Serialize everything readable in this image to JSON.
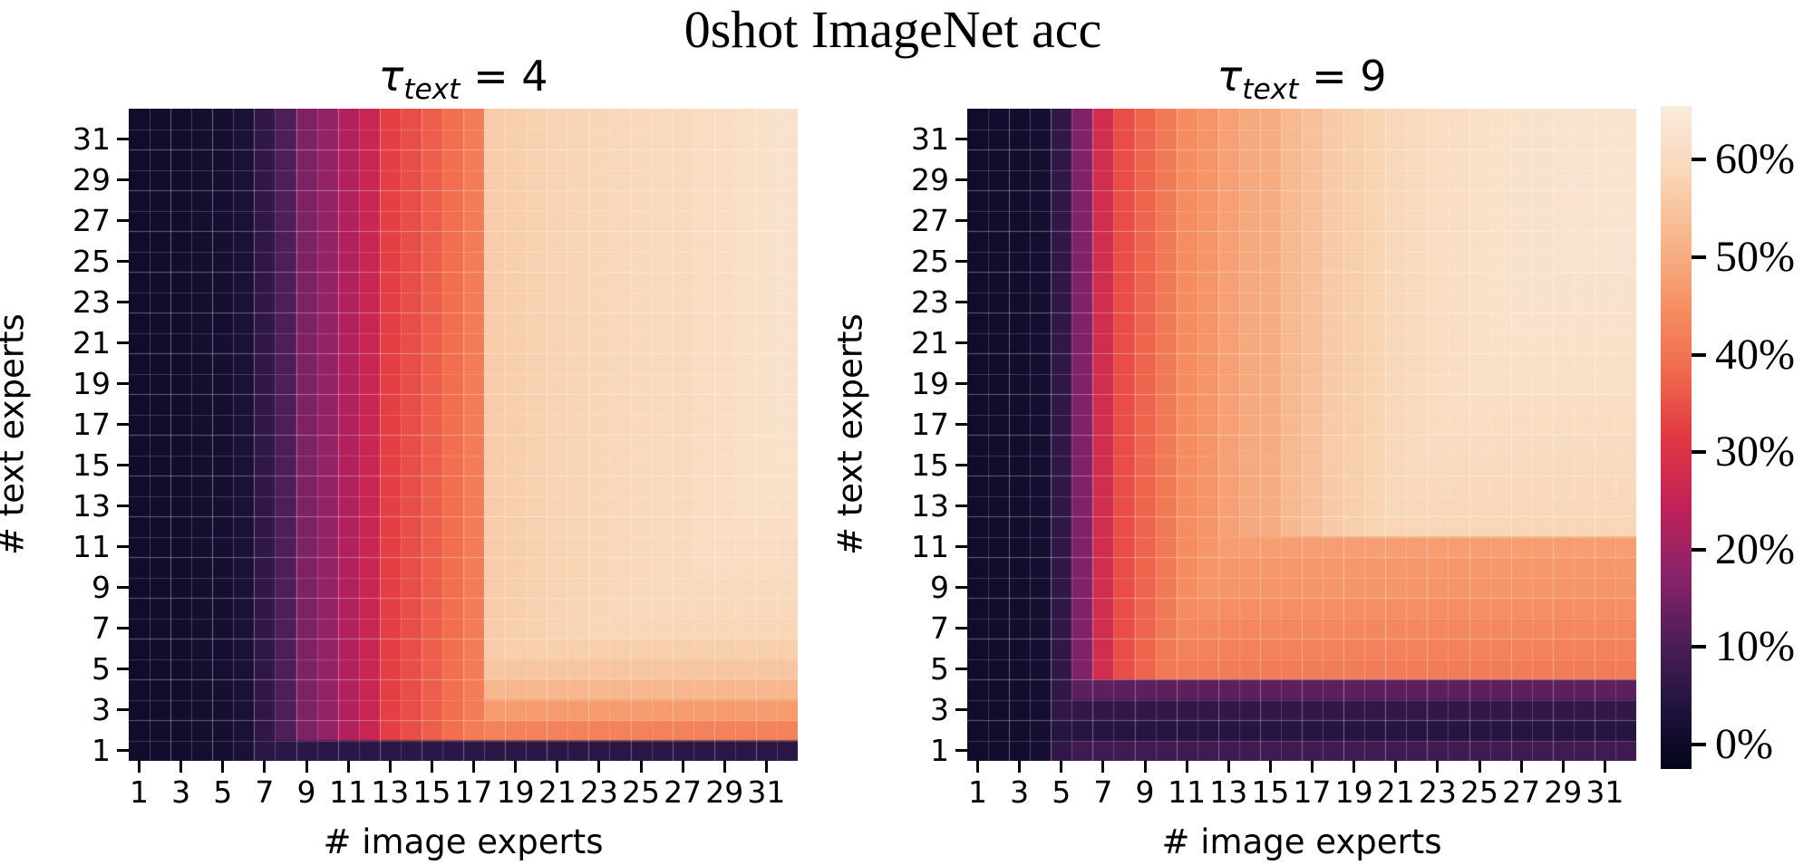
{
  "figure": {
    "title": "0shot ImageNet acc",
    "background": "#ffffff"
  },
  "chart_data": [
    {
      "type": "heatmap",
      "panel": "left",
      "title": "τ_text = 4",
      "title_display": {
        "tau": "τ",
        "sub": "text",
        "rest": " = 4"
      },
      "xlabel": "# image experts",
      "ylabel": "# text experts",
      "x_range": [
        1,
        32
      ],
      "y_range": [
        1,
        32
      ],
      "x_ticks": [
        1,
        3,
        5,
        7,
        9,
        11,
        13,
        15,
        17,
        19,
        21,
        23,
        25,
        27,
        29,
        31
      ],
      "y_ticks": [
        1,
        3,
        5,
        7,
        9,
        11,
        13,
        15,
        17,
        19,
        21,
        23,
        25,
        27,
        29,
        31
      ],
      "values_unit": "percent accuracy",
      "values_model": "acc(x_image_experts, y_text_experts) = min(col_profile[x-1], row_profile[y-1])",
      "col_profile": [
        0.5,
        0.7,
        0.9,
        1.2,
        1.8,
        2.5,
        6,
        10.5,
        16,
        18.5,
        22.5,
        26,
        32.5,
        34.5,
        36.5,
        39,
        41.5,
        56.5,
        57,
        57.5,
        58,
        58.3,
        58.6,
        59,
        59.3,
        59.6,
        60,
        60.4,
        60.8,
        61.3,
        61.8,
        62.5
      ],
      "row_profile": [
        5.5,
        42.5,
        47,
        52,
        55,
        57,
        58.5,
        59.5,
        60,
        60.4,
        60.8,
        61.1,
        61.4,
        61.7,
        62,
        62.2,
        62.4,
        62.6,
        62.8,
        63,
        63.2,
        63.4,
        63.6,
        63.8,
        64,
        64.1,
        64.2,
        64.3,
        64.4,
        64.5,
        64.6,
        64.7
      ]
    },
    {
      "type": "heatmap",
      "panel": "right",
      "title": "τ_text = 9",
      "title_display": {
        "tau": "τ",
        "sub": "text",
        "rest": " = 9"
      },
      "xlabel": "# image experts",
      "ylabel": "# text experts",
      "x_range": [
        1,
        32
      ],
      "y_range": [
        1,
        32
      ],
      "x_ticks": [
        1,
        3,
        5,
        7,
        9,
        11,
        13,
        15,
        17,
        19,
        21,
        23,
        25,
        27,
        29,
        31
      ],
      "y_ticks": [
        1,
        3,
        5,
        7,
        9,
        11,
        13,
        15,
        17,
        19,
        21,
        23,
        25,
        27,
        29,
        31
      ],
      "values_unit": "percent accuracy",
      "values_model": "acc(x_image_experts, y_text_experts) = min(col_profile[x-1], row_profile[y-1])",
      "col_profile": [
        0.5,
        0.7,
        0.9,
        1.5,
        6.5,
        16.5,
        28,
        34.5,
        37.5,
        41,
        44.5,
        46,
        48,
        49.5,
        50,
        52.5,
        54,
        56,
        57,
        58,
        59,
        60,
        60.5,
        61,
        61.5,
        62,
        62.3,
        62.5,
        62.7,
        62.8,
        63,
        63.2
      ],
      "row_profile": [
        8.5,
        4.5,
        6.5,
        12.5,
        41.5,
        42.5,
        43.5,
        45,
        46,
        46.5,
        47.5,
        58.5,
        59,
        59.5,
        60,
        60.3,
        60.6,
        61,
        61.3,
        61.6,
        62,
        62.2,
        62.4,
        62.6,
        62.8,
        63,
        63.2,
        63.4,
        63.6,
        63.8,
        64,
        64.3
      ]
    }
  ],
  "colorbar": {
    "vmin": -2.5,
    "vmax": 65.5,
    "colormap_name": "rocket",
    "ticks": [
      {
        "value": 0,
        "label": "0%"
      },
      {
        "value": 10,
        "label": "10%"
      },
      {
        "value": 20,
        "label": "20%"
      },
      {
        "value": 30,
        "label": "30%"
      },
      {
        "value": 40,
        "label": "40%"
      },
      {
        "value": 50,
        "label": "50%"
      },
      {
        "value": 60,
        "label": "60%"
      }
    ],
    "colormap_anchors": [
      [
        0.0,
        "#03051A"
      ],
      [
        0.1,
        "#231540"
      ],
      [
        0.2,
        "#521E5C"
      ],
      [
        0.3,
        "#8E2368"
      ],
      [
        0.4,
        "#C22257"
      ],
      [
        0.5,
        "#E13842"
      ],
      [
        0.6,
        "#F06A4D"
      ],
      [
        0.7,
        "#F59063"
      ],
      [
        0.8,
        "#F7B68C"
      ],
      [
        0.9,
        "#F8D7B8"
      ],
      [
        1.0,
        "#FAEBDD"
      ]
    ]
  }
}
